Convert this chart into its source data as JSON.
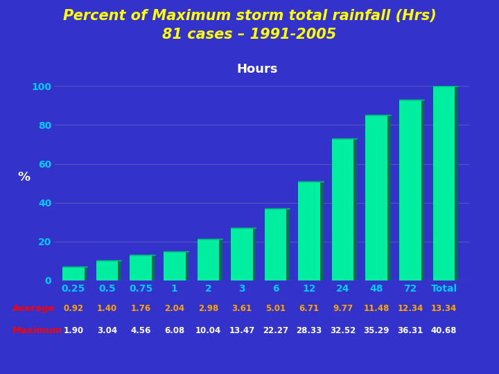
{
  "title_line1": "Percent of Maximum storm total rainfall (Hrs)",
  "title_line2": "81 cases – 1991-2005",
  "xlabel_label": "Hours",
  "ylabel_label": "%",
  "categories": [
    "0.25",
    "0.5",
    "0.75",
    "1",
    "2",
    "3",
    "6",
    "12",
    "24",
    "48",
    "72",
    "Total"
  ],
  "values": [
    7,
    10.5,
    13,
    15,
    21.5,
    27,
    37,
    51,
    73,
    85,
    93,
    100
  ],
  "bar_face_color": "#00EEA0",
  "bar_side_color": "#007050",
  "bar_top_color": "#00BB80",
  "background_color": "#3333CC",
  "plot_bg_color": "#3333CC",
  "title_color": "#FFFF00",
  "xlabel_color": "#FFFFFF",
  "ylabel_color": "#FFFFFF",
  "tick_color": "#00CCFF",
  "grid_color": "#5555BB",
  "ylim": [
    0,
    100
  ],
  "yticks": [
    0,
    20,
    40,
    60,
    80,
    100
  ],
  "average_label": "Average",
  "maximum_label": "Maximum",
  "avg_vals": [
    "0.92",
    "1.40",
    "1.76",
    "2.04",
    "2.98",
    "3.61",
    "5.01",
    "6.71",
    "9.77",
    "11.48",
    "12.34",
    "13.34"
  ],
  "max_vals": [
    "1.90",
    "3.04",
    "4.56",
    "6.08",
    "10.04",
    "13.47",
    "22.27",
    "28.33",
    "32.52",
    "35.29",
    "36.31",
    "40.68"
  ],
  "label_color_red": "#FF0000",
  "label_color_orange": "#FFA500",
  "label_color_white": "#FFFFFF",
  "title_fontsize": 15,
  "tick_fontsize": 10,
  "hours_fontsize": 13
}
